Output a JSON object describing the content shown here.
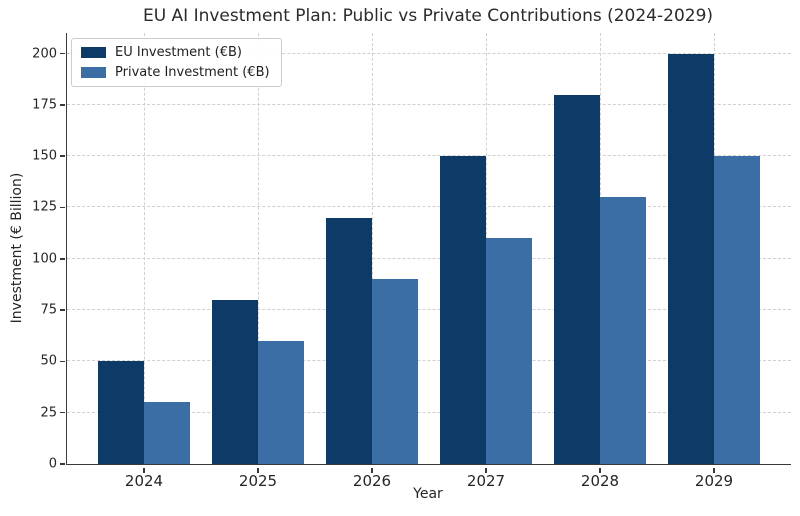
{
  "chart_data": {
    "type": "bar",
    "title": "EU AI Investment Plan: Public vs Private Contributions (2024-2029)",
    "xlabel": "Year",
    "ylabel": "Investment (€ Billion)",
    "categories": [
      "2024",
      "2025",
      "2026",
      "2027",
      "2028",
      "2029"
    ],
    "series": [
      {
        "key": "eu",
        "name": "EU Investment (€B)",
        "color": "#0d3a66",
        "values": [
          50,
          80,
          120,
          150,
          180,
          200
        ]
      },
      {
        "key": "private",
        "name": "Private Investment (€B)",
        "color": "#3a6ea5",
        "values": [
          30,
          60,
          90,
          110,
          130,
          150
        ]
      }
    ],
    "yticks": [
      0,
      25,
      50,
      75,
      100,
      125,
      150,
      175,
      200
    ],
    "ylim": [
      0,
      210
    ],
    "grid": true,
    "grid_style": "dashed",
    "legend_position": "upper left",
    "colors": {
      "grid": "#d0d0d0",
      "spine": "#3a3a3a",
      "tick_label": "#262626",
      "title": "#2b2b2b",
      "background": "#ffffff"
    }
  }
}
